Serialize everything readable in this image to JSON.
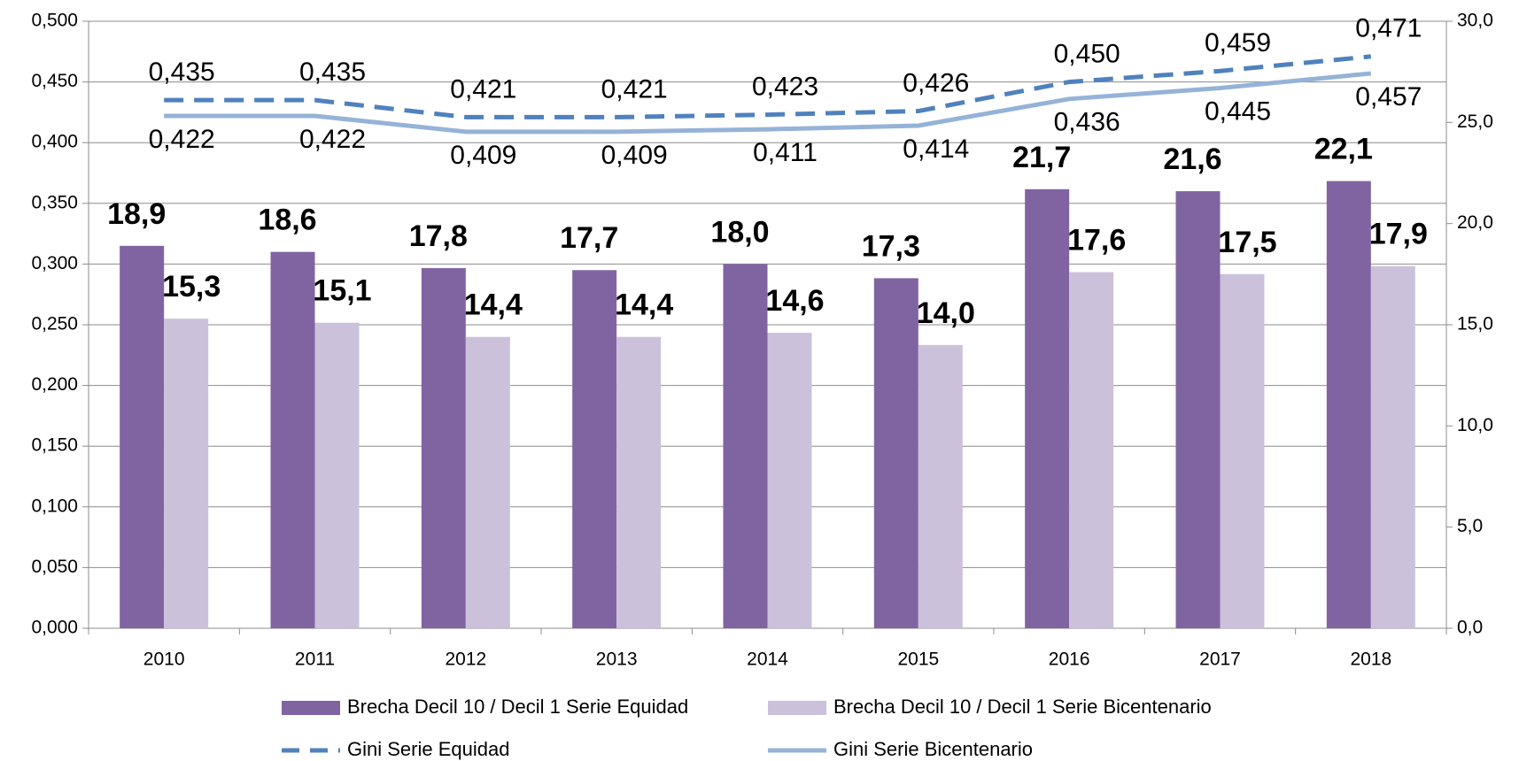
{
  "chart_data": {
    "type": "bar-line",
    "categories": [
      "2010",
      "2011",
      "2012",
      "2013",
      "2014",
      "2015",
      "2016",
      "2017",
      "2018"
    ],
    "ylim": [
      0,
      0.5
    ],
    "yticks": [
      {
        "value": 0,
        "label": "0,000"
      },
      {
        "value": 0.05,
        "label": "0,050"
      },
      {
        "value": 0.1,
        "label": "0,100"
      },
      {
        "value": 0.15,
        "label": "0,150"
      },
      {
        "value": 0.2,
        "label": "0,200"
      },
      {
        "value": 0.25,
        "label": "0,250"
      },
      {
        "value": 0.3,
        "label": "0,300"
      },
      {
        "value": 0.35,
        "label": "0,350"
      },
      {
        "value": 0.4,
        "label": "0,400"
      },
      {
        "value": 0.45,
        "label": "0,450"
      },
      {
        "value": 0.5,
        "label": "0,500"
      }
    ],
    "y2lim": [
      0,
      30
    ],
    "y2ticks": [
      {
        "value": 0,
        "label": "0,0"
      },
      {
        "value": 5,
        "label": "5,0"
      },
      {
        "value": 10,
        "label": "10,0"
      },
      {
        "value": 15,
        "label": "15,0"
      },
      {
        "value": 20,
        "label": "20,0"
      },
      {
        "value": 25,
        "label": "25,0"
      },
      {
        "value": 30,
        "label": "30,0"
      }
    ],
    "grid": true,
    "legend": "bottom",
    "series": [
      {
        "name": "Brecha Decil 10 / Decil 1 Serie Equidad",
        "type": "bar",
        "axis": "y2",
        "color": "#8064a2",
        "values": [
          18.9,
          18.6,
          17.8,
          17.7,
          18.0,
          17.3,
          21.7,
          21.6,
          22.1
        ],
        "value_labels": [
          "18,9",
          "18,6",
          "17,8",
          "17,7",
          "18,0",
          "17,3",
          "21,7",
          "21,6",
          "22,1"
        ]
      },
      {
        "name": "Brecha Decil 10 / Decil 1 Serie Bicentenario",
        "type": "bar",
        "axis": "y2",
        "color": "#ccc1da",
        "values": [
          15.3,
          15.1,
          14.4,
          14.4,
          14.6,
          14.0,
          17.6,
          17.5,
          17.9
        ],
        "value_labels": [
          "15,3",
          "15,1",
          "14,4",
          "14,4",
          "14,6",
          "14,0",
          "17,6",
          "17,5",
          "17,9"
        ]
      },
      {
        "name": "Gini Serie Equidad",
        "type": "line",
        "dash": "dashed",
        "color": "#4f81bd",
        "values": [
          0.435,
          0.435,
          0.421,
          0.421,
          0.423,
          0.426,
          0.45,
          0.459,
          0.471
        ],
        "value_labels": [
          "0,435",
          "0,435",
          "0,421",
          "0,421",
          "0,423",
          "0,426",
          "0,450",
          "0,459",
          "0,471"
        ]
      },
      {
        "name": "Gini Serie Bicentenario",
        "type": "line",
        "dash": "solid",
        "color": "#95b3d7",
        "values": [
          0.422,
          0.422,
          0.409,
          0.409,
          0.411,
          0.414,
          0.436,
          0.445,
          0.457
        ],
        "value_labels": [
          "0,422",
          "0,422",
          "0,409",
          "0,409",
          "0,411",
          "0,414",
          "0,436",
          "0,445",
          "0,457"
        ]
      }
    ]
  }
}
